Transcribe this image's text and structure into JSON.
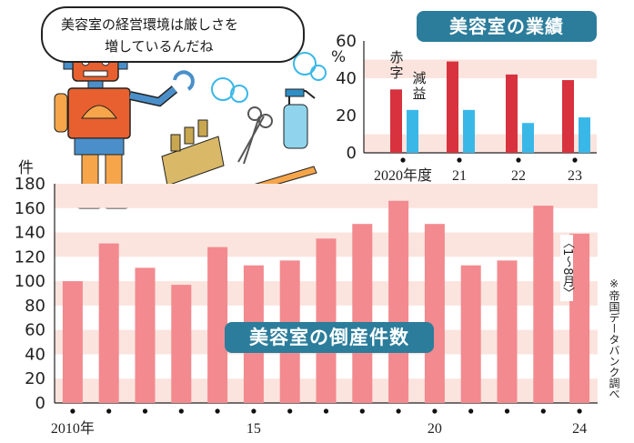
{
  "speech_bubble": {
    "line1": "美容室の経営環境は厳しさを",
    "line2": "増しているんだね"
  },
  "colors": {
    "title_bg": "#2b7d9b",
    "main_bar": "#f28a8f",
    "profit_bar": "#d7323e",
    "loss_bar": "#39b8e8",
    "band": "#fbe4de"
  },
  "chart_data": [
    {
      "type": "bar",
      "title": "美容室の倒産件数",
      "ylabel": "件",
      "ylim": [
        0,
        180
      ],
      "yticks": [
        "0",
        "20",
        "40",
        "60",
        "80",
        "100",
        "120",
        "140",
        "160",
        "180"
      ],
      "x": [
        2010,
        2011,
        2012,
        2013,
        2014,
        2015,
        2016,
        2017,
        2018,
        2019,
        2020,
        2021,
        2022,
        2023,
        2024
      ],
      "x_tick_labels": [
        {
          "x": 2010,
          "label": "2010年"
        },
        {
          "x": 2015,
          "label": "15"
        },
        {
          "x": 2020,
          "label": "20"
        },
        {
          "x": 2024,
          "label": "24"
        }
      ],
      "values": [
        100,
        131,
        111,
        97,
        128,
        113,
        117,
        135,
        147,
        166,
        147,
        113,
        117,
        162,
        139
      ],
      "annotation": "〈1〜8月〉",
      "source_note": "※帝国データバンク調べ"
    },
    {
      "type": "bar",
      "title": "美容室の業績",
      "ylabel": "%",
      "ylim": [
        0,
        60
      ],
      "yticks": [
        "0",
        "20",
        "40",
        "60"
      ],
      "categories": [
        "2020年度",
        "21",
        "22",
        "23"
      ],
      "series": [
        {
          "name": "赤字",
          "values": [
            34,
            49,
            42,
            39
          ]
        },
        {
          "name": "減益",
          "values": [
            23,
            23,
            16,
            19
          ]
        }
      ]
    }
  ]
}
